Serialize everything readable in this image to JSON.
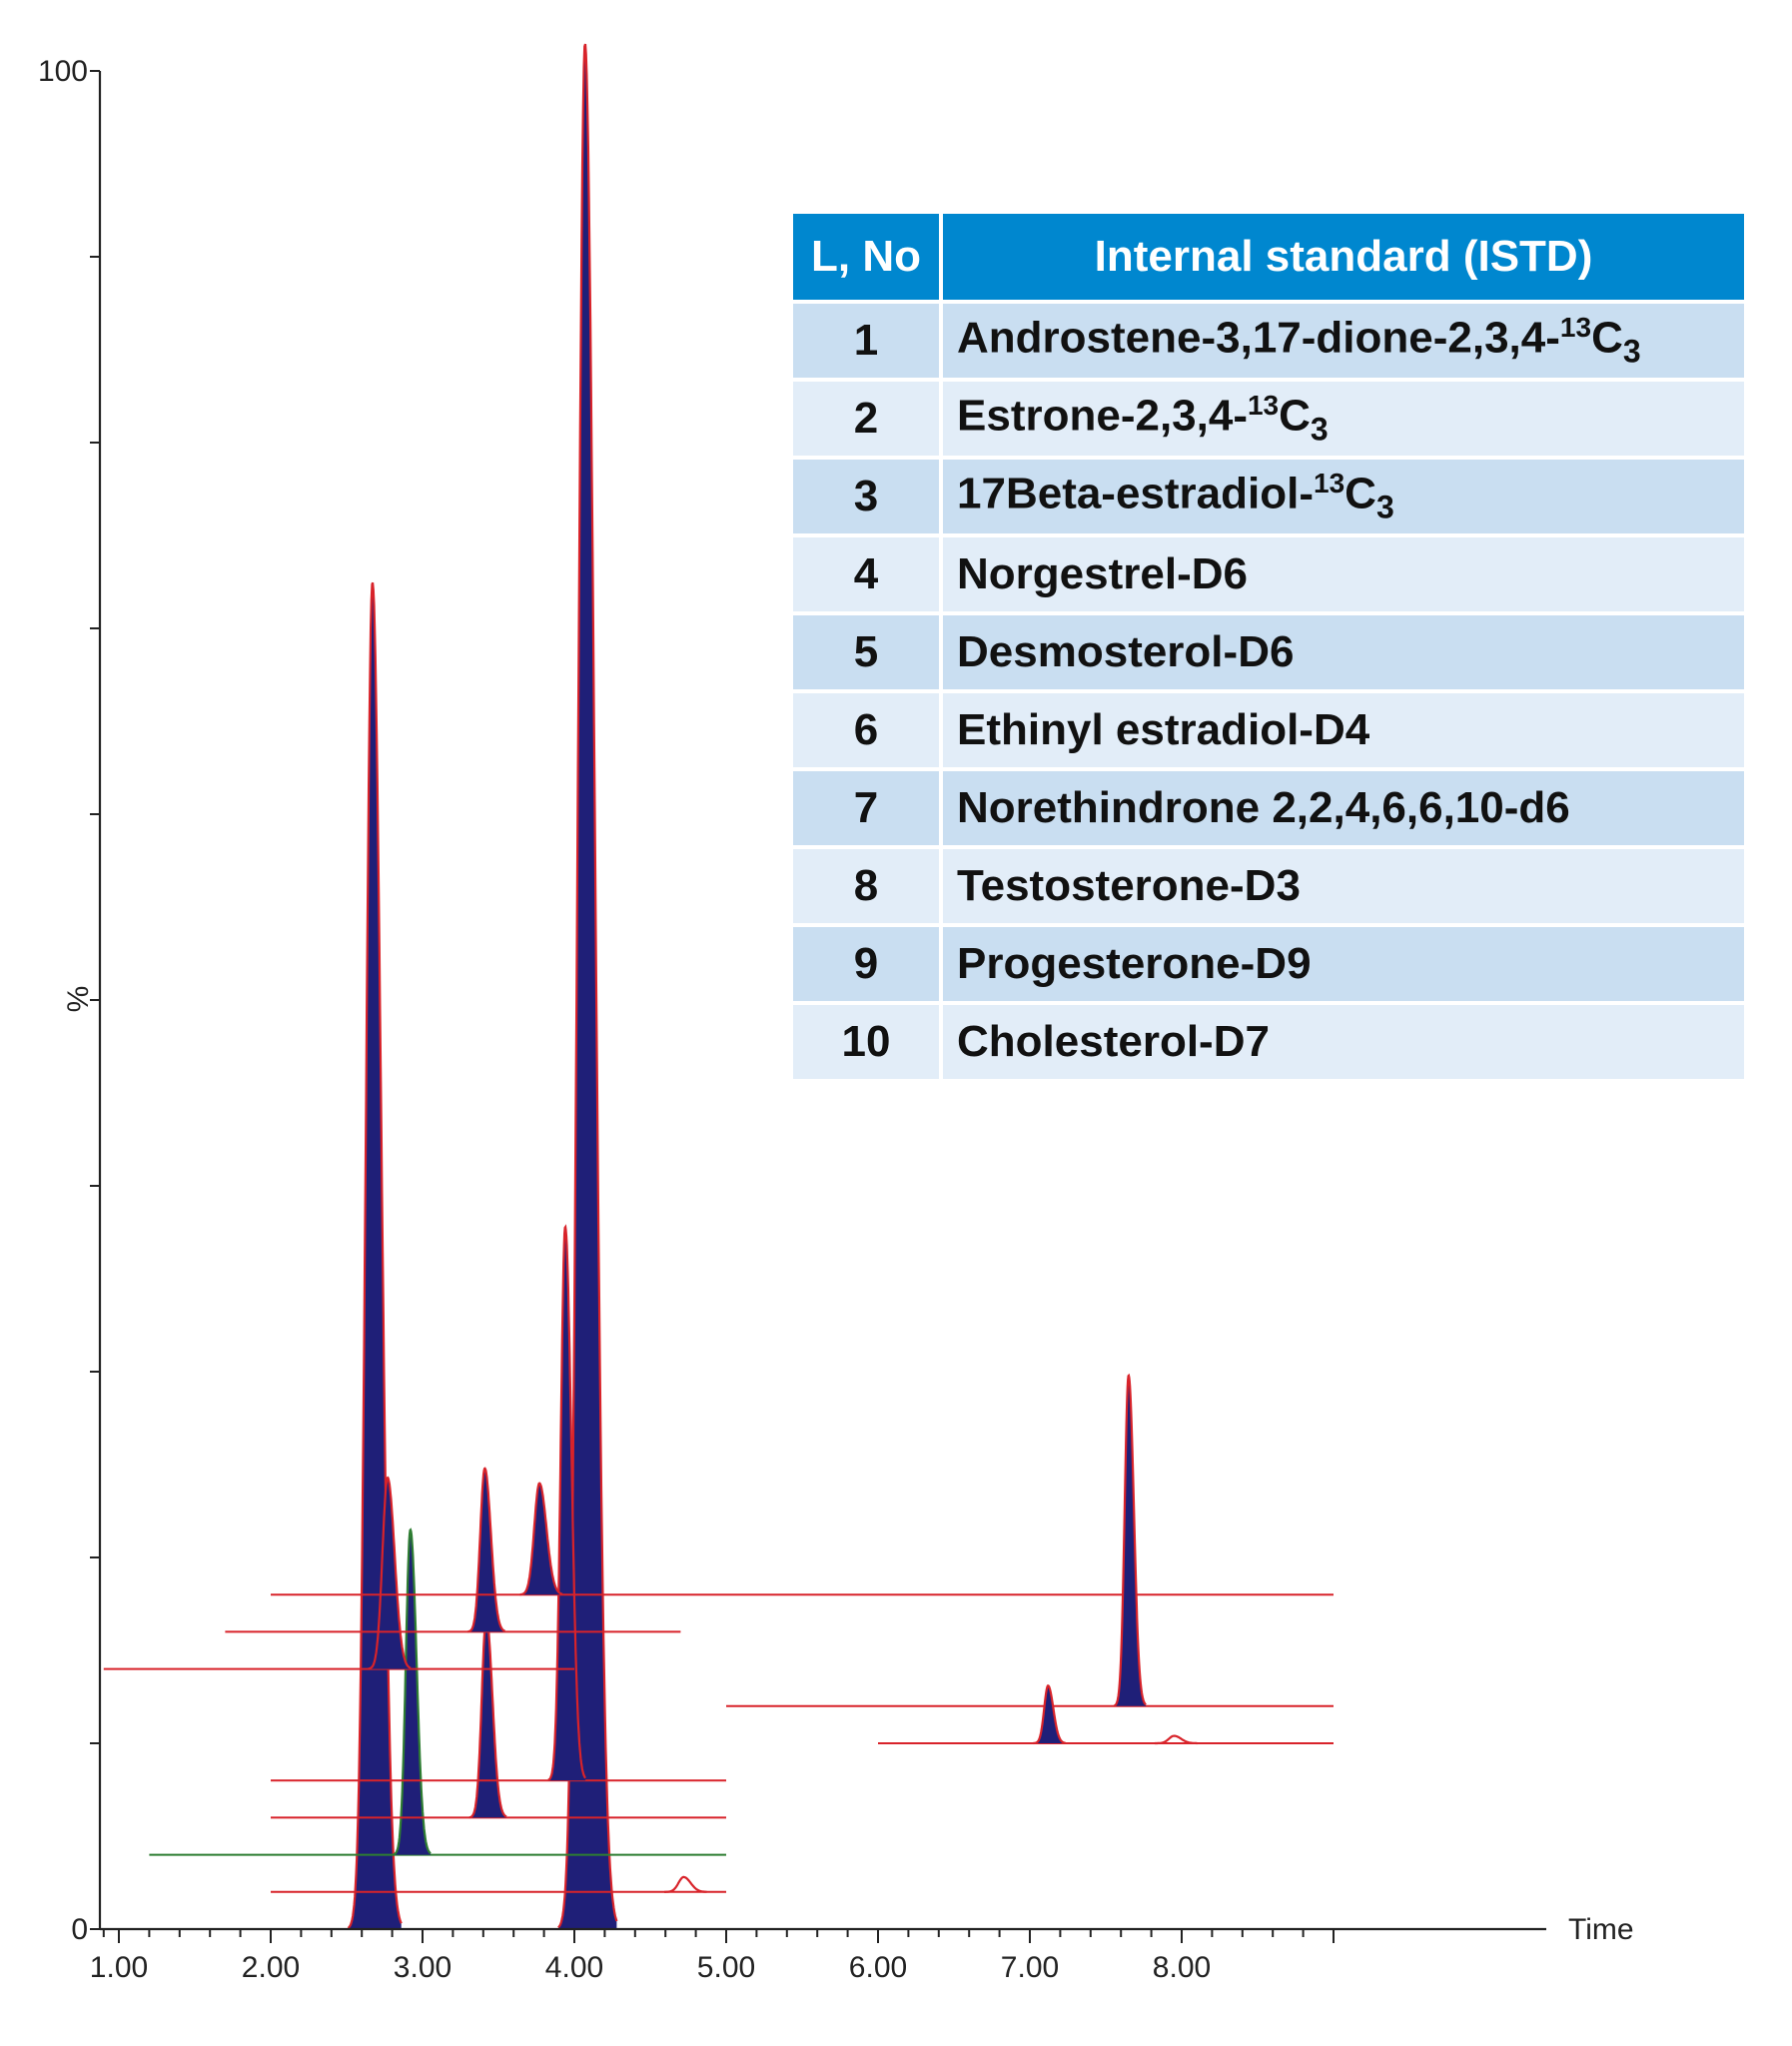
{
  "chart_data": {
    "type": "line",
    "xlabel": "Time",
    "ylabel": "%",
    "xlim": [
      0.9,
      9.0
    ],
    "ylim": [
      0,
      100
    ],
    "x_ticks": [
      "1.00",
      "2.00",
      "3.00",
      "4.00",
      "5.00",
      "6.00",
      "7.00",
      "8.00"
    ],
    "y_ticks": [
      "0",
      "100"
    ],
    "traces": [
      {
        "baseline": 0.0,
        "x_start": 1.1,
        "x_end": 4.9,
        "peaks": [
          {
            "x": 2.67,
            "height": 72.5,
            "width": 0.05
          },
          {
            "x": 4.07,
            "height": 101.5,
            "width": 0.055
          }
        ],
        "color": "#d8232a"
      },
      {
        "baseline": 2.0,
        "x_start": 2.0,
        "x_end": 5.0,
        "peaks": [
          {
            "x": 4.72,
            "height": 0.8,
            "width": 0.04
          }
        ],
        "color": "#d8232a"
      },
      {
        "baseline": 4.0,
        "x_start": 1.2,
        "x_end": 5.0,
        "peaks": [
          {
            "x": 2.92,
            "height": 17.5,
            "width": 0.035
          }
        ],
        "color": "#2e7d32"
      },
      {
        "baseline": 6.0,
        "x_start": 2.0,
        "x_end": 5.0,
        "peaks": [
          {
            "x": 3.42,
            "height": 10.8,
            "width": 0.035
          }
        ],
        "color": "#d8232a"
      },
      {
        "baseline": 8.0,
        "x_start": 2.0,
        "x_end": 5.0,
        "peaks": [
          {
            "x": 3.94,
            "height": 29.8,
            "width": 0.035
          }
        ],
        "color": "#d8232a"
      },
      {
        "baseline": 14.0,
        "x_start": 0.9,
        "x_end": 4.0,
        "peaks": [
          {
            "x": 2.77,
            "height": 10.3,
            "width": 0.04
          }
        ],
        "color": "#d8232a"
      },
      {
        "baseline": 16.0,
        "x_start": 1.7,
        "x_end": 4.7,
        "peaks": [
          {
            "x": 3.41,
            "height": 8.8,
            "width": 0.035
          }
        ],
        "color": "#d8232a"
      },
      {
        "baseline": 18.0,
        "x_start": 2.0,
        "x_end": 9.0,
        "peaks": [
          {
            "x": 3.77,
            "height": 6.0,
            "width": 0.04
          }
        ],
        "color": "#d8232a"
      },
      {
        "baseline": 12.0,
        "x_start": 5.0,
        "x_end": 9.0,
        "peaks": [
          {
            "x": 7.65,
            "height": 17.8,
            "width": 0.03
          }
        ],
        "color": "#d8232a"
      },
      {
        "baseline": 10.0,
        "x_start": 6.0,
        "x_end": 9.0,
        "peaks": [
          {
            "x": 7.12,
            "height": 3.1,
            "width": 0.03
          },
          {
            "x": 7.95,
            "height": 0.4,
            "width": 0.04
          }
        ],
        "color": "#d8232a"
      }
    ],
    "fill_color": "#1f1f78"
  },
  "table": {
    "headers": [
      "L, No",
      "Internal standard (ISTD)"
    ],
    "rows": [
      {
        "no": "1",
        "name": "Androstene-3,17-dione-2,3,4-",
        "sup": "13",
        "base": "C",
        "sub": "3"
      },
      {
        "no": "2",
        "name": "Estrone-2,3,4-",
        "sup": "13",
        "base": "C",
        "sub": "3"
      },
      {
        "no": "3",
        "name": "17Beta-estradiol-",
        "sup": "13",
        "base": "C",
        "sub": "3"
      },
      {
        "no": "4",
        "name": "Norgestrel-D6"
      },
      {
        "no": "5",
        "name": "Desmosterol-D6"
      },
      {
        "no": "6",
        "name": "Ethinyl estradiol-D4"
      },
      {
        "no": "7",
        "name": "Norethindrone 2,2,4,6,6,10-d6"
      },
      {
        "no": "8",
        "name": "Testosterone-D3"
      },
      {
        "no": "9",
        "name": "Progesterone-D9"
      },
      {
        "no": "10",
        "name": "Cholesterol-D7"
      }
    ]
  }
}
